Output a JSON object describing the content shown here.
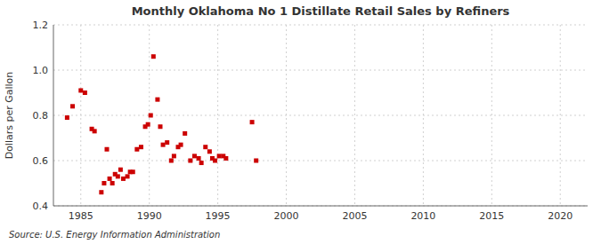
{
  "chart_data": {
    "type": "scatter",
    "title": "Monthly Oklahoma No 1 Distillate Retail Sales by Refiners",
    "y_label": "Dollars per Gallon",
    "source": "Source: U.S. Energy Information Administration",
    "color": "#cc0000",
    "marker": "square",
    "grid": true,
    "xlim": [
      1983,
      2022
    ],
    "ylim": [
      0.4,
      1.2
    ],
    "xticks": [
      1985,
      1990,
      1995,
      2000,
      2005,
      2010,
      2015,
      2020
    ],
    "yticks": [
      0.4,
      0.6,
      0.8,
      {
        "value": 1.0,
        "label": "1.0"
      },
      1.2
    ],
    "x": [
      1984.0,
      1984.4,
      1985.0,
      1985.3,
      1985.8,
      1986.0,
      1986.5,
      1986.7,
      1986.9,
      1987.1,
      1987.3,
      1987.5,
      1987.7,
      1987.9,
      1988.1,
      1988.4,
      1988.6,
      1988.8,
      1989.1,
      1989.4,
      1989.7,
      1989.9,
      1990.1,
      1990.3,
      1990.6,
      1990.8,
      1991.0,
      1991.3,
      1991.6,
      1991.8,
      1992.1,
      1992.3,
      1992.6,
      1993.0,
      1993.3,
      1993.6,
      1993.8,
      1994.1,
      1994.4,
      1994.6,
      1994.8,
      1995.1,
      1995.4,
      1995.6,
      1997.5,
      1997.8
    ],
    "values": [
      0.79,
      0.84,
      0.91,
      0.9,
      0.74,
      0.73,
      0.46,
      0.5,
      0.65,
      0.52,
      0.5,
      0.54,
      0.53,
      0.56,
      0.52,
      0.53,
      0.55,
      0.55,
      0.65,
      0.66,
      0.75,
      0.76,
      0.8,
      1.06,
      0.87,
      0.75,
      0.67,
      0.68,
      0.6,
      0.62,
      0.66,
      0.67,
      0.72,
      0.6,
      0.62,
      0.61,
      0.59,
      0.66,
      0.64,
      0.61,
      0.6,
      0.62,
      0.62,
      0.61,
      0.77,
      0.6
    ]
  }
}
